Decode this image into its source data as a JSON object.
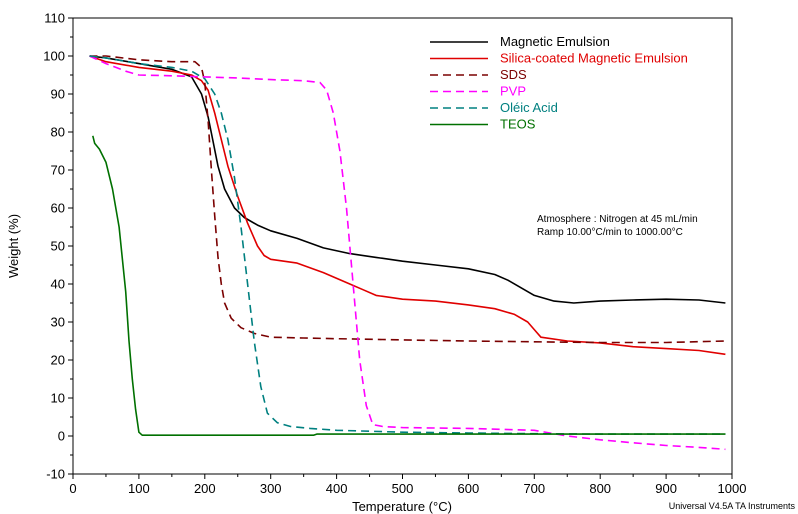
{
  "chart_data": {
    "type": "line",
    "xlabel": "Temperature (°C)",
    "ylabel": "Weight (%)",
    "xlim": [
      0,
      1000
    ],
    "ylim": [
      -10,
      110
    ],
    "xticks": [
      0,
      100,
      200,
      300,
      400,
      500,
      600,
      700,
      800,
      900,
      1000
    ],
    "yticks": [
      -10,
      0,
      10,
      20,
      30,
      40,
      50,
      60,
      70,
      80,
      90,
      100,
      110
    ],
    "grid": false,
    "legend_position": "top-right",
    "annotations": [
      "Atmosphere : Nitrogen at 45 mL/min",
      "Ramp 10.00°C/min to 1000.00°C"
    ],
    "footer": "Universal V4.5A TA Instruments",
    "series": [
      {
        "name": "Magnetic Emulsion",
        "color": "#000000",
        "dash": "solid",
        "x": [
          25,
          50,
          100,
          150,
          180,
          195,
          205,
          212,
          220,
          230,
          245,
          260,
          280,
          300,
          340,
          380,
          420,
          460,
          500,
          550,
          600,
          640,
          660,
          680,
          700,
          730,
          760,
          800,
          850,
          900,
          950,
          990
        ],
        "y": [
          100,
          99.5,
          98,
          96.5,
          94.5,
          90,
          84,
          78,
          71,
          65,
          60,
          57.5,
          55.5,
          54,
          52,
          49.5,
          48,
          47,
          46,
          45,
          44,
          42.5,
          41,
          39,
          37,
          35.5,
          35,
          35.5,
          35.8,
          36,
          35.8,
          35
        ]
      },
      {
        "name": "Silica-coated Magnetic Emulsion",
        "color": "#e00000",
        "dash": "solid",
        "x": [
          25,
          50,
          100,
          150,
          180,
          195,
          205,
          215,
          225,
          235,
          250,
          265,
          280,
          290,
          300,
          340,
          380,
          420,
          440,
          460,
          500,
          550,
          600,
          640,
          670,
          690,
          700,
          710,
          750,
          800,
          850,
          900,
          950,
          990
        ],
        "y": [
          100,
          98.5,
          97,
          96,
          95,
          93.5,
          91,
          85,
          78,
          71,
          63,
          56,
          50,
          47.5,
          46.5,
          45.5,
          43,
          40,
          38.5,
          37,
          36,
          35.5,
          34.5,
          33.5,
          32,
          30,
          28,
          26,
          25,
          24.5,
          23.5,
          23,
          22.5,
          21.5
        ]
      },
      {
        "name": "SDS",
        "color": "#7a0000",
        "dash": "dashed",
        "x": [
          25,
          50,
          100,
          150,
          185,
          195,
          200,
          205,
          210,
          215,
          220,
          225,
          230,
          240,
          255,
          275,
          300,
          350,
          400,
          500,
          600,
          700,
          800,
          900,
          990
        ],
        "y": [
          100,
          100,
          99,
          98.5,
          98.5,
          97,
          93,
          83,
          70,
          58,
          47,
          40,
          35,
          31,
          28.5,
          27,
          26,
          25.8,
          25.6,
          25.3,
          25,
          24.8,
          24.6,
          24.6,
          25
        ]
      },
      {
        "name": "PVP",
        "color": "#ff00ff",
        "dash": "dashed",
        "x": [
          25,
          50,
          80,
          100,
          150,
          200,
          250,
          300,
          350,
          375,
          385,
          395,
          405,
          415,
          425,
          435,
          445,
          455,
          470,
          500,
          600,
          700,
          750,
          800,
          850,
          900,
          950,
          990
        ],
        "y": [
          100,
          98,
          96,
          95,
          94.8,
          94.5,
          94.2,
          93.8,
          93.5,
          93,
          91,
          85,
          75,
          60,
          40,
          20,
          8,
          3,
          2.5,
          2.2,
          2,
          1.5,
          0,
          -1,
          -1.8,
          -2.5,
          -3,
          -3.5
        ]
      },
      {
        "name": "Oléic Acid",
        "color": "#008080",
        "dash": "dashed",
        "x": [
          25,
          50,
          100,
          150,
          180,
          200,
          215,
          225,
          235,
          245,
          255,
          265,
          275,
          285,
          295,
          310,
          330,
          360,
          400,
          500,
          600,
          700,
          800,
          900,
          990
        ],
        "y": [
          100,
          99.5,
          98,
          97,
          96,
          94,
          90,
          85,
          78,
          68,
          55,
          40,
          25,
          13,
          6,
          3.5,
          2.5,
          2,
          1.5,
          1,
          0.8,
          0.6,
          0.5,
          0.5,
          0.5
        ]
      },
      {
        "name": "TEOS",
        "color": "#007000",
        "dash": "solid",
        "x": [
          30,
          33,
          40,
          50,
          60,
          70,
          80,
          85,
          90,
          95,
          100,
          105,
          150,
          200,
          300,
          365,
          370,
          400,
          500,
          600,
          700,
          800,
          900,
          990
        ],
        "y": [
          79,
          77,
          75.5,
          72,
          65,
          55,
          38,
          25,
          15,
          7,
          1,
          0.2,
          0.2,
          0.2,
          0.2,
          0.2,
          0.5,
          0.5,
          0.5,
          0.5,
          0.5,
          0.5,
          0.5,
          0.5
        ]
      }
    ]
  }
}
